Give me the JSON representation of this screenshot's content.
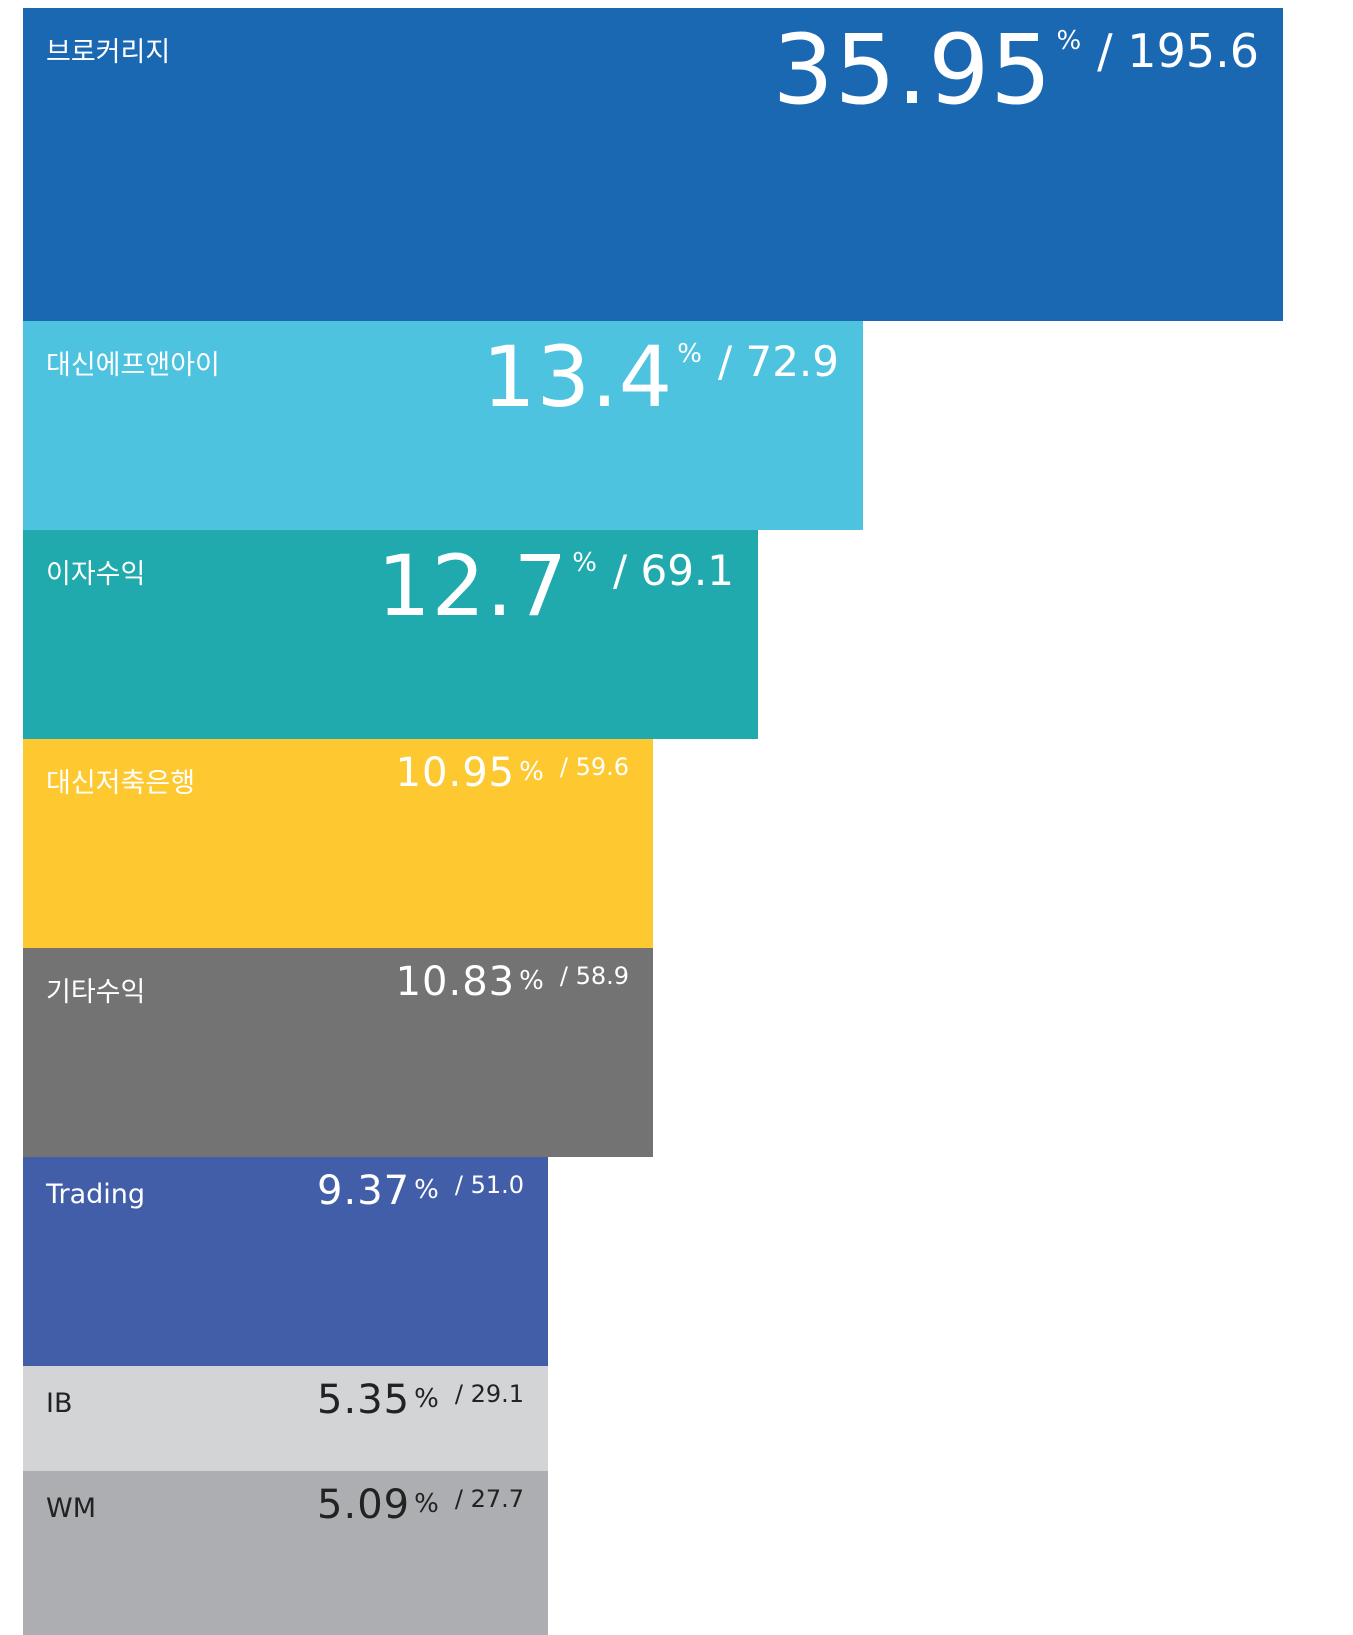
{
  "unit": "%",
  "separator": "/",
  "items": [
    {
      "label": "브로커리지",
      "percent": "35.95",
      "amount": "195.6",
      "color": "#1a67b2",
      "text_color": "#ffffff"
    },
    {
      "label": "대신에프앤아이",
      "percent": "13.4",
      "amount": "72.9",
      "color": "#4dc3df",
      "text_color": "#ffffff"
    },
    {
      "label": "이자수익",
      "percent": "12.7",
      "amount": "69.1",
      "color": "#20aaae",
      "text_color": "#ffffff"
    },
    {
      "label": "대신저축은행",
      "percent": "10.95",
      "amount": "59.6",
      "color": "#fec831",
      "text_color": "#ffffff"
    },
    {
      "label": "기타수익",
      "percent": "10.83",
      "amount": "58.9",
      "color": "#737373",
      "text_color": "#ffffff"
    },
    {
      "label": "Trading",
      "percent": "9.37",
      "amount": "51.0",
      "color": "#425ea8",
      "text_color": "#ffffff"
    },
    {
      "label": "IB",
      "percent": "5.35",
      "amount": "29.1",
      "color": "#d3d4d6",
      "text_color": "#222222"
    },
    {
      "label": "WM",
      "percent": "5.09",
      "amount": "27.7",
      "color": "#adaeb1",
      "text_color": "#222222"
    }
  ]
}
